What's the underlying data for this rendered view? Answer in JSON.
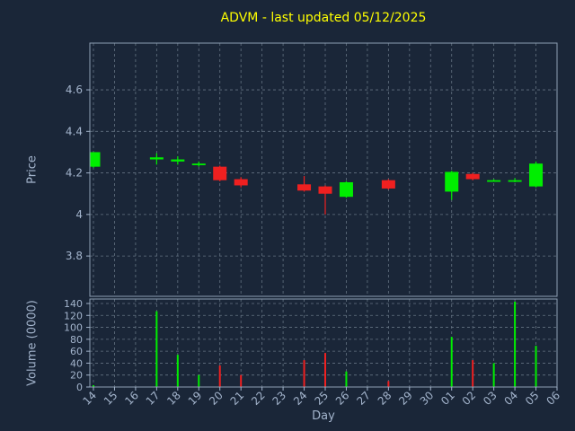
{
  "chart_data": {
    "type": "candlestick",
    "title": "ADVM - last updated 05/12/2025",
    "xlabel": "Day",
    "x_labels": [
      "14",
      "15",
      "16",
      "17",
      "18",
      "19",
      "20",
      "21",
      "22",
      "23",
      "24",
      "25",
      "26",
      "27",
      "28",
      "29",
      "30",
      "01",
      "02",
      "03",
      "04",
      "05",
      "06"
    ],
    "price_axis": {
      "label": "Price",
      "ticks": [
        4.6,
        4.4,
        4.2,
        4.0,
        3.8
      ],
      "tick_labels": [
        "4.6",
        "4.4",
        "4.2",
        "4",
        "3.8"
      ],
      "ylim": [
        3.606,
        4.825
      ]
    },
    "volume_axis": {
      "label": "Volume (0000)",
      "ticks": [
        140,
        120,
        100,
        80,
        60,
        40,
        20,
        0
      ],
      "tick_labels": [
        "140",
        "120",
        "100",
        "80",
        "60",
        "40",
        "20",
        "0"
      ],
      "ylim": [
        0,
        147.5
      ]
    },
    "candles": [
      {
        "day": "14",
        "day_index": 0,
        "open": 4.23,
        "high": 4.3,
        "low": 4.225,
        "close": 4.3,
        "volume": 3
      },
      {
        "day": "17",
        "day_index": 3,
        "open": 4.265,
        "high": 4.295,
        "low": 4.24,
        "close": 4.275,
        "volume": 127
      },
      {
        "day": "18",
        "day_index": 4,
        "open": 4.255,
        "high": 4.28,
        "low": 4.24,
        "close": 4.265,
        "volume": 54
      },
      {
        "day": "19",
        "day_index": 5,
        "open": 4.24,
        "high": 4.255,
        "low": 4.23,
        "close": 4.245,
        "volume": 20
      },
      {
        "day": "20",
        "day_index": 6,
        "open": 4.23,
        "high": 4.235,
        "low": 4.16,
        "close": 4.165,
        "volume": 36
      },
      {
        "day": "21",
        "day_index": 7,
        "open": 4.17,
        "high": 4.18,
        "low": 4.13,
        "close": 4.14,
        "volume": 20
      },
      {
        "day": "24",
        "day_index": 10,
        "open": 4.145,
        "high": 4.185,
        "low": 4.11,
        "close": 4.115,
        "volume": 45
      },
      {
        "day": "25",
        "day_index": 11,
        "open": 4.135,
        "high": 4.14,
        "low": 4.0,
        "close": 4.1,
        "volume": 57
      },
      {
        "day": "26",
        "day_index": 12,
        "open": 4.085,
        "high": 4.16,
        "low": 4.08,
        "close": 4.155,
        "volume": 26
      },
      {
        "day": "28",
        "day_index": 14,
        "open": 4.165,
        "high": 4.17,
        "low": 4.12,
        "close": 4.125,
        "volume": 10
      },
      {
        "day": "01",
        "day_index": 17,
        "open": 4.11,
        "high": 4.21,
        "low": 4.07,
        "close": 4.205,
        "volume": 84
      },
      {
        "day": "02",
        "day_index": 18,
        "open": 4.195,
        "high": 4.2,
        "low": 4.165,
        "close": 4.17,
        "volume": 45
      },
      {
        "day": "03",
        "day_index": 19,
        "open": 4.165,
        "high": 4.17,
        "low": 4.16,
        "close": 4.165,
        "volume": 40
      },
      {
        "day": "04",
        "day_index": 20,
        "open": 4.165,
        "high": 4.175,
        "low": 4.155,
        "close": 4.165,
        "volume": 143
      },
      {
        "day": "05",
        "day_index": 21,
        "open": 4.135,
        "high": 4.255,
        "low": 4.13,
        "close": 4.245,
        "volume": 69
      }
    ],
    "style": {
      "background": "#1a2638",
      "title_color": "#ffff00",
      "tick_color": "#a3b4cc",
      "axis_label_color": "#a3b4cc",
      "grid_color": "#71808f",
      "spine_color": "#8fa0b4",
      "up_color": "#00ee00",
      "down_color": "#ef2020",
      "grid_linestyle": "dashed",
      "legend": "none"
    }
  }
}
